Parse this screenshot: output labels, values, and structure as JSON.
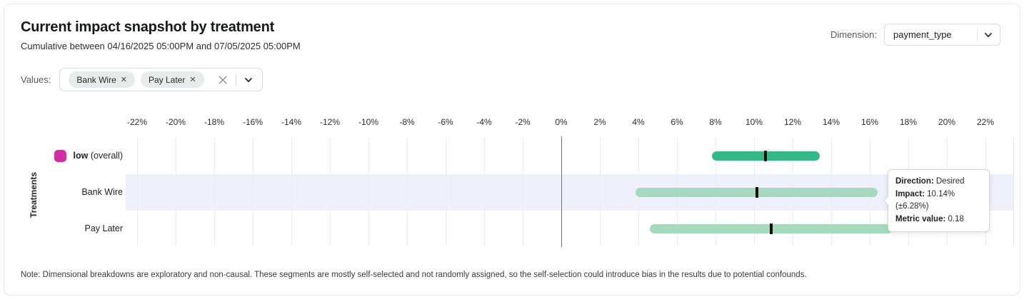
{
  "header": {
    "title": "Current impact snapshot by treatment",
    "subtitle": "Cumulative between 04/16/2025 05:00PM and 07/05/2025 05:00PM",
    "dimension_label": "Dimension:",
    "dimension_value": "payment_type"
  },
  "filters": {
    "label": "Values:",
    "chips": [
      {
        "label": "Bank Wire",
        "remove_glyph": "✕"
      },
      {
        "label": "Pay Later",
        "remove_glyph": "✕"
      }
    ]
  },
  "tooltip": {
    "direction_label": "Direction:",
    "direction_value": "Desired",
    "impact_label": "Impact:",
    "impact_value": "10.14% (±6.28%)",
    "metric_label": "Metric value:",
    "metric_value": "0.18"
  },
  "note": "Note: Dimensional breakdowns are exploratory and non-causal. These segments are mostly self-selected and not randomly assigned, so the self-selection could introduce bias in the results due to potential confounds.",
  "colors": {
    "overall_bar": "#34b888",
    "segment_bar": "#a6dabe",
    "overall_swatch": "#d22ea3",
    "row_highlight": "#eef0fb",
    "center_tick": "#0e0e10"
  },
  "chart_data": {
    "type": "bar",
    "subtype": "horizontal_range_bars",
    "title": "Current impact snapshot by treatment",
    "ylabel": "Treatments",
    "x_axis_format": "percent",
    "x_ticks": [
      -22,
      -20,
      -18,
      -16,
      -14,
      -12,
      -10,
      -8,
      -6,
      -4,
      -2,
      0,
      2,
      4,
      6,
      8,
      10,
      12,
      14,
      16,
      18,
      20,
      22
    ],
    "xlim": [
      -23.5,
      23.5
    ],
    "grid": true,
    "legend_position": "none",
    "rows": [
      {
        "label": "low",
        "suffix": "(overall)",
        "swatch_color": "#d22ea3",
        "bar_color": "#34b888",
        "impact_pct": 10.6,
        "ci_low_pct": 7.8,
        "ci_high_pct": 13.4,
        "highlighted": false
      },
      {
        "label": "Bank Wire",
        "bar_color": "#a6dabe",
        "impact_pct": 10.14,
        "ci_low_pct": 3.86,
        "ci_high_pct": 16.42,
        "highlighted": true,
        "direction": "Desired",
        "metric_value": 0.18
      },
      {
        "label": "Pay Later",
        "bar_color": "#a6dabe",
        "impact_pct": 10.9,
        "ci_low_pct": 4.6,
        "ci_high_pct": 17.2,
        "highlighted": false
      }
    ]
  }
}
